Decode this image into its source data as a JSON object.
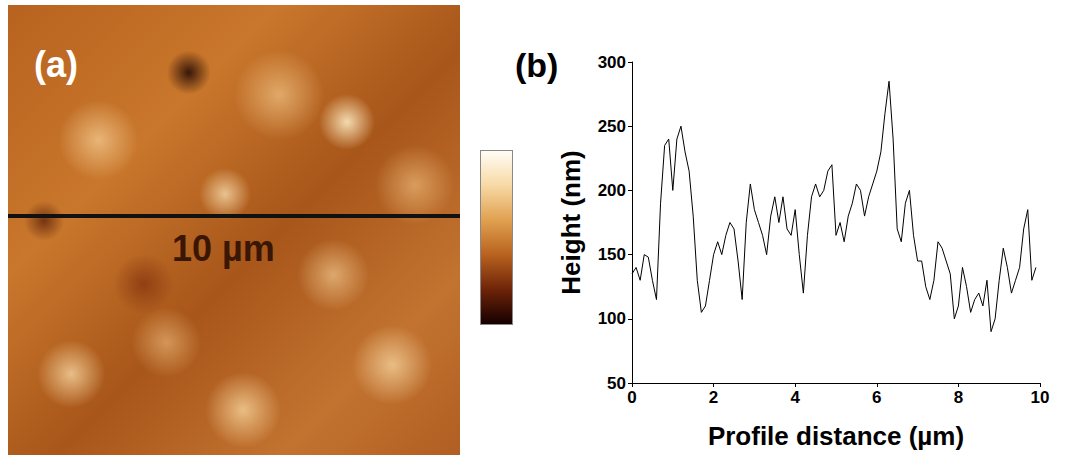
{
  "image_panel": {
    "label": "(a)",
    "scale_label": "10 µm"
  },
  "chart_data": {
    "type": "line",
    "panel_label": "(b)",
    "x_label": "Profile distance (µm)",
    "y_label": "Height (nm)",
    "color": "#000000",
    "x": [
      0,
      0.1,
      0.2,
      0.3,
      0.4,
      0.5,
      0.6,
      0.7,
      0.8,
      0.9,
      1.0,
      1.1,
      1.2,
      1.3,
      1.4,
      1.5,
      1.6,
      1.7,
      1.8,
      1.9,
      2.0,
      2.1,
      2.2,
      2.3,
      2.4,
      2.5,
      2.6,
      2.7,
      2.8,
      2.9,
      3.0,
      3.1,
      3.2,
      3.3,
      3.4,
      3.5,
      3.6,
      3.7,
      3.8,
      3.9,
      4.0,
      4.1,
      4.2,
      4.3,
      4.4,
      4.5,
      4.6,
      4.7,
      4.8,
      4.9,
      5.0,
      5.1,
      5.2,
      5.3,
      5.4,
      5.5,
      5.6,
      5.7,
      5.8,
      5.9,
      6.0,
      6.1,
      6.2,
      6.3,
      6.4,
      6.5,
      6.6,
      6.7,
      6.8,
      6.9,
      7.0,
      7.1,
      7.2,
      7.3,
      7.4,
      7.5,
      7.6,
      7.7,
      7.8,
      7.9,
      8.0,
      8.1,
      8.2,
      8.3,
      8.4,
      8.5,
      8.6,
      8.7,
      8.8,
      8.9,
      9.0,
      9.1,
      9.2,
      9.3,
      9.4,
      9.5,
      9.6,
      9.7,
      9.8,
      9.9
    ],
    "values": [
      135,
      140,
      130,
      150,
      148,
      130,
      115,
      190,
      235,
      240,
      200,
      240,
      250,
      230,
      215,
      180,
      130,
      105,
      110,
      130,
      150,
      160,
      150,
      165,
      175,
      170,
      145,
      115,
      175,
      205,
      185,
      175,
      165,
      150,
      180,
      195,
      175,
      195,
      170,
      165,
      185,
      150,
      120,
      165,
      195,
      205,
      195,
      200,
      215,
      220,
      165,
      175,
      160,
      180,
      190,
      205,
      200,
      180,
      195,
      205,
      215,
      230,
      260,
      285,
      240,
      170,
      160,
      190,
      200,
      165,
      145,
      145,
      125,
      115,
      130,
      160,
      155,
      145,
      135,
      100,
      110,
      140,
      125,
      105,
      115,
      120,
      110,
      130,
      90,
      100,
      130,
      155,
      140,
      120,
      130,
      140,
      170,
      185,
      130,
      140
    ],
    "xlim": [
      0,
      10
    ],
    "ylim": [
      50,
      300
    ],
    "xticks": [
      0,
      2,
      4,
      6,
      8,
      10
    ],
    "yticks": [
      50,
      100,
      150,
      200,
      250,
      300
    ],
    "grid": false
  }
}
